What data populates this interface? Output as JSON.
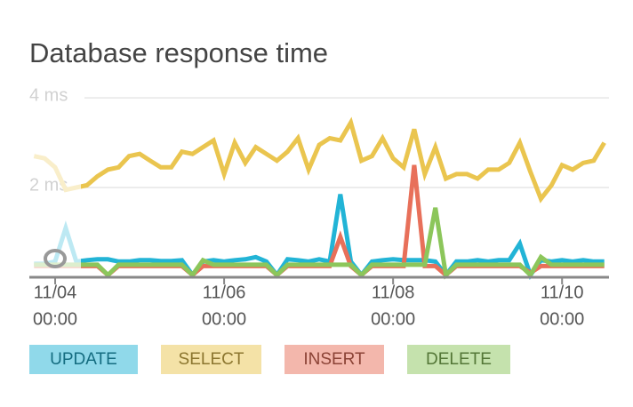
{
  "chart_data": {
    "type": "line",
    "title": "Database response time",
    "x": [
      "11/03 18:00",
      "11/03 21:00",
      "11/04 00:00",
      "11/04 03:00",
      "11/04 06:00",
      "11/04 09:00",
      "11/04 12:00",
      "11/04 15:00",
      "11/04 18:00",
      "11/04 21:00",
      "11/05 00:00",
      "11/05 03:00",
      "11/05 06:00",
      "11/05 09:00",
      "11/05 12:00",
      "11/05 15:00",
      "11/05 18:00",
      "11/05 21:00",
      "11/06 00:00",
      "11/06 03:00",
      "11/06 06:00",
      "11/06 09:00",
      "11/06 12:00",
      "11/06 15:00",
      "11/06 18:00",
      "11/06 21:00",
      "11/07 00:00",
      "11/07 03:00",
      "11/07 06:00",
      "11/07 09:00",
      "11/07 12:00",
      "11/07 15:00",
      "11/07 18:00",
      "11/07 21:00",
      "11/08 00:00",
      "11/08 03:00",
      "11/08 06:00",
      "11/08 09:00",
      "11/08 12:00",
      "11/08 15:00",
      "11/08 18:00",
      "11/08 21:00",
      "11/09 00:00",
      "11/09 03:00",
      "11/09 06:00",
      "11/09 09:00",
      "11/09 12:00",
      "11/09 15:00",
      "11/09 18:00",
      "11/09 21:00",
      "11/10 00:00",
      "11/10 03:00",
      "11/10 06:00",
      "11/10 09:00",
      "11/10 12:00"
    ],
    "series": [
      {
        "name": "UPDATE",
        "color": "#22b4d6",
        "values": [
          0.3,
          0.3,
          0.35,
          1.1,
          0.35,
          0.38,
          0.4,
          0.4,
          0.35,
          0.35,
          0.38,
          0.38,
          0.36,
          0.36,
          0.38,
          0.05,
          0.35,
          0.38,
          0.35,
          0.38,
          0.4,
          0.45,
          0.35,
          0.05,
          0.4,
          0.38,
          0.35,
          0.4,
          0.35,
          1.85,
          0.35,
          0.05,
          0.35,
          0.38,
          0.4,
          0.38,
          0.38,
          0.38,
          0.35,
          0.05,
          0.35,
          0.35,
          0.38,
          0.35,
          0.38,
          0.38,
          0.75,
          0.05,
          0.38,
          0.35,
          0.38,
          0.35,
          0.38,
          0.35,
          0.35
        ]
      },
      {
        "name": "SELECT",
        "color": "#eac54f",
        "values": [
          2.7,
          2.65,
          2.45,
          1.95,
          2.0,
          2.05,
          2.25,
          2.4,
          2.45,
          2.7,
          2.75,
          2.6,
          2.45,
          2.45,
          2.8,
          2.75,
          2.9,
          3.05,
          2.3,
          3.0,
          2.55,
          2.9,
          2.75,
          2.6,
          2.8,
          3.1,
          2.4,
          2.95,
          3.1,
          3.05,
          3.45,
          2.6,
          2.7,
          3.1,
          2.65,
          2.45,
          3.3,
          2.3,
          2.9,
          2.2,
          2.3,
          2.3,
          2.2,
          2.4,
          2.4,
          2.55,
          3.0,
          2.35,
          1.75,
          2.05,
          2.5,
          2.4,
          2.55,
          2.6,
          3.0
        ]
      },
      {
        "name": "INSERT",
        "color": "#e8705a",
        "values": [
          0.25,
          0.25,
          0.25,
          0.25,
          0.25,
          0.25,
          0.25,
          0.05,
          0.25,
          0.25,
          0.25,
          0.25,
          0.25,
          0.25,
          0.25,
          0.05,
          0.25,
          0.25,
          0.25,
          0.25,
          0.25,
          0.25,
          0.25,
          0.05,
          0.25,
          0.25,
          0.25,
          0.25,
          0.25,
          0.9,
          0.25,
          0.05,
          0.25,
          0.25,
          0.25,
          0.25,
          2.5,
          0.25,
          0.25,
          0.05,
          0.25,
          0.25,
          0.25,
          0.25,
          0.25,
          0.25,
          0.25,
          0.1,
          0.25,
          0.25,
          0.25,
          0.25,
          0.25,
          0.25,
          0.25
        ]
      },
      {
        "name": "DELETE",
        "color": "#8cc65b",
        "values": [
          0.28,
          0.28,
          0.28,
          0.28,
          0.28,
          0.28,
          0.28,
          0.05,
          0.28,
          0.28,
          0.28,
          0.28,
          0.28,
          0.28,
          0.28,
          0.05,
          0.38,
          0.28,
          0.28,
          0.28,
          0.28,
          0.28,
          0.28,
          0.05,
          0.28,
          0.28,
          0.28,
          0.28,
          0.28,
          0.28,
          0.28,
          0.05,
          0.28,
          0.28,
          0.28,
          0.28,
          0.28,
          0.28,
          1.55,
          0.05,
          0.28,
          0.28,
          0.28,
          0.28,
          0.28,
          0.28,
          0.28,
          0.05,
          0.45,
          0.28,
          0.28,
          0.28,
          0.28,
          0.28,
          0.28
        ]
      }
    ],
    "xlim": [
      "11/03 16:40",
      "11/10 13:20"
    ],
    "xticks": [
      {
        "value": "11/04 00:00",
        "label": [
          "11/04",
          "00:00"
        ]
      },
      {
        "value": "11/06 00:00",
        "label": [
          "11/06",
          "00:00"
        ]
      },
      {
        "value": "11/08 00:00",
        "label": [
          "11/08",
          "00:00"
        ]
      },
      {
        "value": "11/10 00:00",
        "label": [
          "11/10",
          "00:00"
        ]
      }
    ],
    "ylim": [
      0,
      4.2
    ],
    "yticks": [
      {
        "value": 2,
        "label": "2 ms"
      },
      {
        "value": 4,
        "label": "4 ms"
      }
    ],
    "grid": true
  }
}
